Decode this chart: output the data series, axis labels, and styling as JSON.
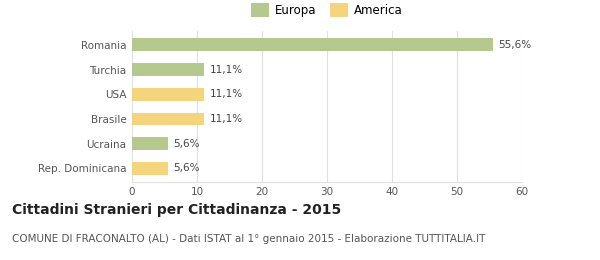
{
  "categories": [
    "Romania",
    "Turchia",
    "USA",
    "Brasile",
    "Ucraina",
    "Rep. Dominicana"
  ],
  "values": [
    55.6,
    11.1,
    11.1,
    11.1,
    5.6,
    5.6
  ],
  "labels": [
    "55,6%",
    "11,1%",
    "11,1%",
    "11,1%",
    "5,6%",
    "5,6%"
  ],
  "colors": [
    "#b5c98e",
    "#b5c98e",
    "#f5d47e",
    "#f5d47e",
    "#b5c98e",
    "#f5d47e"
  ],
  "legend": [
    {
      "label": "Europa",
      "color": "#b5c98e"
    },
    {
      "label": "America",
      "color": "#f5d47e"
    }
  ],
  "xlim": [
    0,
    60
  ],
  "xticks": [
    0,
    10,
    20,
    30,
    40,
    50,
    60
  ],
  "title": "Cittadini Stranieri per Cittadinanza - 2015",
  "subtitle": "COMUNE DI FRACONALTO (AL) - Dati ISTAT al 1° gennaio 2015 - Elaborazione TUTTITALIA.IT",
  "background_color": "#ffffff",
  "grid_color": "#e0e0e0",
  "bar_height": 0.52,
  "title_fontsize": 10,
  "subtitle_fontsize": 7.5,
  "label_fontsize": 7.5,
  "tick_fontsize": 7.5,
  "legend_fontsize": 8.5
}
